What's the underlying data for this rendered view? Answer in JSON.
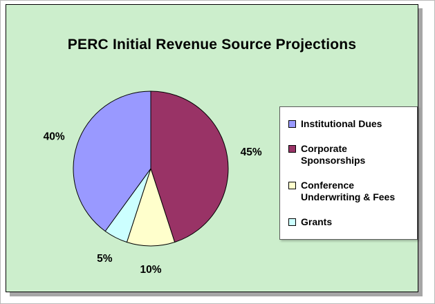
{
  "chart_data": {
    "type": "pie",
    "title": "PERC Initial Revenue Source Projections",
    "slices": [
      {
        "label": "Institutional Dues",
        "value": 40,
        "percent_label": "40%",
        "color": "#9999FF"
      },
      {
        "label": "Corporate Sponsorships",
        "value": 45,
        "percent_label": "45%",
        "color": "#993366"
      },
      {
        "label": "Conference Underwriting & Fees",
        "value": 10,
        "percent_label": "10%",
        "color": "#FFFFCC"
      },
      {
        "label": "Grants",
        "value": 5,
        "percent_label": "5%",
        "color": "#CCFFFF"
      }
    ],
    "legend_position": "right",
    "legend_order": [
      0,
      1,
      2,
      3
    ],
    "start_angle_deg": 0,
    "direction": "clockwise",
    "draw_order": [
      1,
      2,
      3,
      0
    ],
    "labels_outside": true
  },
  "colors": {
    "panel_background": "#CCEECC",
    "legend_background": "#FFFFFF",
    "slice_outline": "#000000",
    "percent_label_color": "#000000",
    "shadow": "#A6A6A6"
  }
}
